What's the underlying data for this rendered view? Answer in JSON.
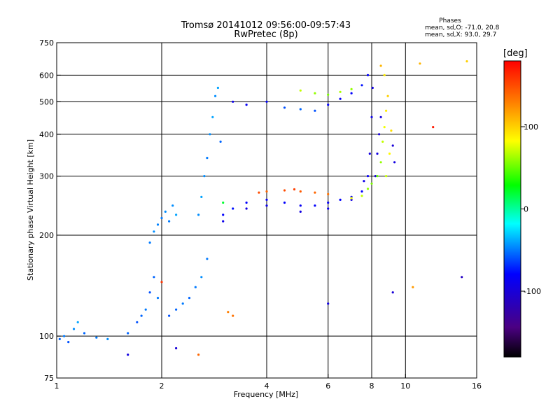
{
  "chart_data": {
    "type": "scatter",
    "title": "Tromsø 20141012 09:56:00-09:57:43",
    "subtitle": "RwPretec (8p)",
    "xlabel": "Frequency [MHz]",
    "ylabel": "Stationary phase Virtual Height [km]",
    "x_scale": "log",
    "y_scale": "log",
    "xlim": [
      1,
      16
    ],
    "ylim": [
      75,
      750
    ],
    "x_ticks": [
      1,
      2,
      4,
      6,
      8,
      10,
      16
    ],
    "y_ticks": [
      75,
      100,
      200,
      300,
      400,
      500,
      600,
      750
    ],
    "grid_x": [
      2,
      4,
      6,
      8,
      10
    ],
    "grid_y": [
      100,
      200,
      300,
      400,
      500,
      600
    ],
    "phase_info": {
      "heading": "Phases",
      "line1": "mean, sd,O: -71.0, 20.8",
      "line2": "mean, sd,X:  93.0, 29.7"
    },
    "colorbar": {
      "label": "[deg]",
      "range": [
        -180,
        180
      ],
      "ticks": [
        100,
        0,
        -100
      ],
      "colormap": "rainbow"
    },
    "series": [
      {
        "points": [
          [
            1.02,
            98,
            -55
          ],
          [
            1.05,
            100,
            -50
          ],
          [
            1.08,
            96,
            -60
          ],
          [
            1.12,
            105,
            -45
          ],
          [
            1.15,
            110,
            -40
          ],
          [
            1.2,
            102,
            -55
          ],
          [
            1.3,
            99,
            -50
          ],
          [
            1.4,
            98,
            -45
          ],
          [
            1.6,
            102,
            -55
          ],
          [
            1.7,
            110,
            -60
          ],
          [
            1.75,
            115,
            -55
          ],
          [
            1.8,
            120,
            -50
          ],
          [
            1.85,
            135,
            -60
          ],
          [
            1.9,
            150,
            -55
          ],
          [
            1.95,
            130,
            -50
          ],
          [
            1.85,
            190,
            -50
          ],
          [
            1.9,
            205,
            -45
          ],
          [
            1.95,
            215,
            -48
          ],
          [
            2.0,
            225,
            -50
          ],
          [
            2.05,
            235,
            -45
          ],
          [
            2.1,
            220,
            -50
          ],
          [
            2.15,
            245,
            -45
          ],
          [
            2.2,
            230,
            -40
          ],
          [
            2.1,
            115,
            -60
          ],
          [
            2.2,
            120,
            -55
          ],
          [
            2.3,
            125,
            -50
          ],
          [
            2.4,
            130,
            -55
          ],
          [
            2.5,
            140,
            -50
          ],
          [
            2.6,
            150,
            -45
          ],
          [
            2.7,
            170,
            -50
          ],
          [
            2.55,
            230,
            -45
          ],
          [
            2.6,
            260,
            -40
          ],
          [
            2.65,
            300,
            -45
          ],
          [
            2.7,
            340,
            -50
          ],
          [
            2.75,
            400,
            -45
          ],
          [
            2.8,
            450,
            -40
          ],
          [
            2.85,
            520,
            -45
          ],
          [
            2.9,
            550,
            -40
          ],
          [
            2.95,
            380,
            -55
          ],
          [
            3.0,
            230,
            -80
          ],
          [
            3.2,
            240,
            -75
          ],
          [
            3.5,
            250,
            -80
          ],
          [
            4.0,
            255,
            -85
          ],
          [
            4.5,
            250,
            -80
          ],
          [
            5.0,
            245,
            -85
          ],
          [
            5.5,
            245,
            -80
          ],
          [
            6.0,
            250,
            -85
          ],
          [
            6.5,
            255,
            -80
          ],
          [
            7.0,
            260,
            -85
          ],
          [
            7.5,
            270,
            -80
          ],
          [
            7.8,
            300,
            -85
          ],
          [
            3.0,
            220,
            -90
          ],
          [
            3.5,
            240,
            -95
          ],
          [
            4.0,
            245,
            -90
          ],
          [
            5.0,
            235,
            -95
          ],
          [
            6.0,
            240,
            -90
          ],
          [
            7.0,
            255,
            -95
          ],
          [
            7.6,
            290,
            -90
          ],
          [
            7.9,
            350,
            -95
          ],
          [
            8.0,
            450,
            -90
          ],
          [
            8.05,
            550,
            -95
          ],
          [
            3.2,
            500,
            -90
          ],
          [
            3.5,
            490,
            -85
          ],
          [
            4.0,
            500,
            -80
          ],
          [
            4.5,
            480,
            -60
          ],
          [
            5.0,
            475,
            -55
          ],
          [
            5.5,
            470,
            -60
          ],
          [
            6.0,
            490,
            -80
          ],
          [
            6.5,
            510,
            -85
          ],
          [
            7.0,
            530,
            -80
          ],
          [
            7.5,
            560,
            -75
          ],
          [
            7.8,
            600,
            -80
          ],
          [
            8.2,
            300,
            -100
          ],
          [
            8.3,
            350,
            -95
          ],
          [
            8.4,
            400,
            -100
          ],
          [
            8.5,
            450,
            -95
          ],
          [
            9.2,
            370,
            -100
          ],
          [
            9.3,
            330,
            -95
          ],
          [
            9.2,
            135,
            -100
          ],
          [
            14.5,
            150,
            -110
          ],
          [
            6.0,
            125,
            -95
          ],
          [
            2.2,
            92,
            -100
          ],
          [
            1.6,
            88,
            -95
          ]
        ]
      },
      {
        "points": [
          [
            4.0,
            270,
            140
          ],
          [
            4.5,
            272,
            150
          ],
          [
            5.0,
            270,
            145
          ],
          [
            5.5,
            268,
            140
          ],
          [
            6.0,
            265,
            135
          ],
          [
            3.8,
            268,
            150
          ],
          [
            4.8,
            274,
            155
          ],
          [
            7.0,
            258,
            80
          ],
          [
            7.5,
            262,
            70
          ],
          [
            7.8,
            275,
            60
          ],
          [
            8.0,
            285,
            55
          ],
          [
            8.3,
            300,
            50
          ],
          [
            8.5,
            330,
            60
          ],
          [
            8.6,
            380,
            70
          ],
          [
            8.7,
            420,
            80
          ],
          [
            8.8,
            470,
            90
          ],
          [
            8.9,
            520,
            100
          ],
          [
            8.7,
            600,
            90
          ],
          [
            8.5,
            640,
            110
          ],
          [
            6.5,
            535,
            65
          ],
          [
            7.0,
            545,
            60
          ],
          [
            5.0,
            540,
            70
          ],
          [
            5.5,
            530,
            60
          ],
          [
            6.0,
            525,
            55
          ],
          [
            8.8,
            300,
            70
          ],
          [
            9.0,
            350,
            85
          ],
          [
            9.1,
            410,
            95
          ],
          [
            3.1,
            118,
            130
          ],
          [
            3.2,
            115,
            135
          ],
          [
            2.55,
            88,
            140
          ],
          [
            11.0,
            650,
            110
          ],
          [
            15.0,
            660,
            100
          ],
          [
            10.5,
            140,
            120
          ],
          [
            2.0,
            145,
            160
          ],
          [
            12.0,
            420,
            170
          ],
          [
            3.0,
            250,
            20
          ]
        ]
      }
    ]
  }
}
